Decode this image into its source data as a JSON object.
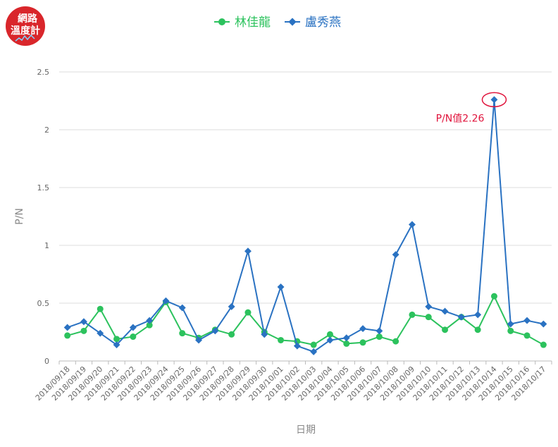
{
  "logo": {
    "line1": "網路",
    "line2": "溫度計",
    "color": "#d9262b"
  },
  "chart_data": {
    "type": "line",
    "xlabel": "日期",
    "ylabel": "P/N",
    "ylim": [
      0,
      2.5
    ],
    "yticks": [
      "0",
      "0.5",
      "1",
      "1.5",
      "2",
      "2.5"
    ],
    "grid": true,
    "legend_position": "top-center",
    "categories": [
      "2018/09/18",
      "2018/09/19",
      "2018/09/20",
      "2018/09/21",
      "2018/09/22",
      "2018/09/23",
      "2018/09/24",
      "2018/09/25",
      "2018/09/26",
      "2018/09/27",
      "2018/09/28",
      "2018/09/29",
      "2018/09/30",
      "2018/10/01",
      "2018/10/02",
      "2018/10/03",
      "2018/10/04",
      "2018/10/05",
      "2018/10/06",
      "2018/10/07",
      "2018/10/08",
      "2018/10/09",
      "2018/10/10",
      "2018/10/11",
      "2018/10/12",
      "2018/10/13",
      "2018/10/14",
      "2018/10/15",
      "2018/10/16",
      "2018/10/17"
    ],
    "series": [
      {
        "name": "林佳龍",
        "color": "#2cc25d",
        "marker": "circle",
        "values": [
          0.22,
          0.26,
          0.45,
          0.19,
          0.21,
          0.31,
          0.51,
          0.24,
          0.2,
          0.27,
          0.23,
          0.42,
          0.25,
          0.18,
          0.17,
          0.14,
          0.23,
          0.15,
          0.16,
          0.21,
          0.17,
          0.4,
          0.38,
          0.27,
          0.38,
          0.27,
          0.56,
          0.26,
          0.22,
          0.14
        ]
      },
      {
        "name": "盧秀燕",
        "color": "#2a72c2",
        "marker": "diamond",
        "values": [
          0.29,
          0.34,
          0.24,
          0.14,
          0.29,
          0.35,
          0.52,
          0.46,
          0.18,
          0.26,
          0.47,
          0.95,
          0.23,
          0.64,
          0.13,
          0.08,
          0.18,
          0.2,
          0.28,
          0.26,
          0.92,
          1.18,
          0.47,
          0.43,
          0.38,
          0.4,
          2.26,
          0.32,
          0.35,
          0.32
        ]
      }
    ],
    "annotation": {
      "text": "P/N值2.26",
      "series": 1,
      "index": 26,
      "color": "#e0143c"
    }
  }
}
